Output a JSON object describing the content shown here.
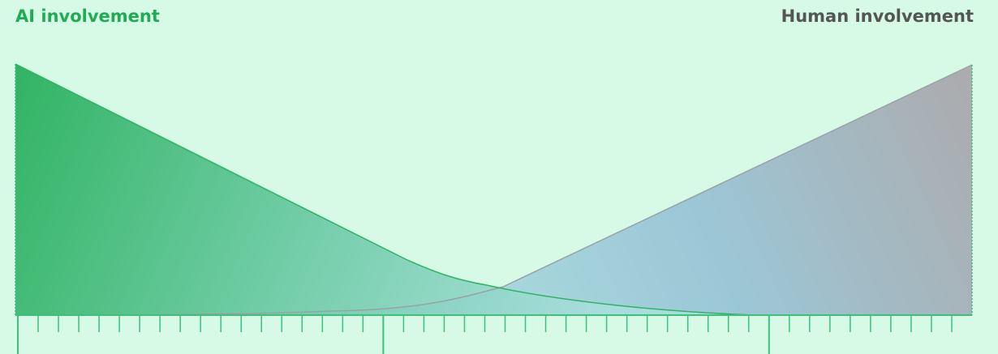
{
  "labels": {
    "left": "AI involvement",
    "right": "Human involvement"
  },
  "colors": {
    "background": "#d6fae6",
    "ai_green": "#1fac54",
    "ai_curve": "#2fb264",
    "human_grey": "#555555",
    "human_curve": "#9aa2a6",
    "human_fill_end": "#a9a3a7",
    "teal_mid": "#a9dede",
    "blue_mid": "#97c2d5",
    "axis": "#3cc07a"
  },
  "scale": {
    "minor_ticks": 47,
    "major_ticks_at": [
      0,
      18,
      37
    ]
  }
}
